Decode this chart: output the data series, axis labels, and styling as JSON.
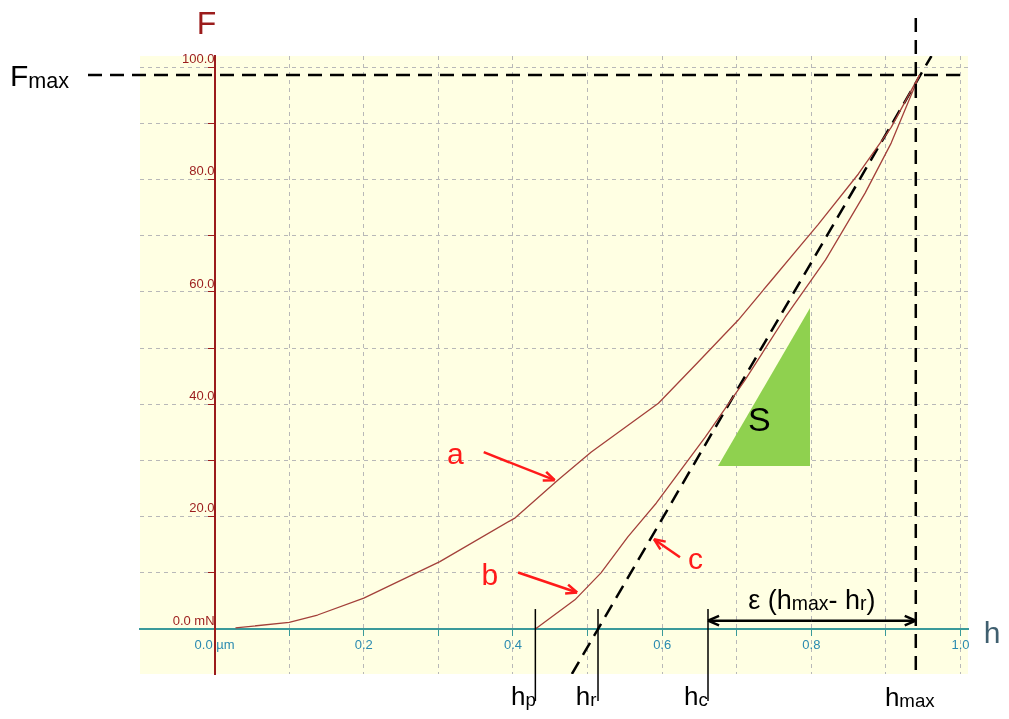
{
  "chart_data": {
    "type": "line",
    "xlabel": "h",
    "ylabel": "F",
    "xlim": [
      -0.1,
      1.01
    ],
    "ylim": [
      -8,
      102
    ],
    "xticks": [
      {
        "value": 0,
        "label": "0.0 µm"
      },
      {
        "value": 0.1,
        "label": null
      },
      {
        "value": 0.2,
        "label": "0.2"
      },
      {
        "value": 0.3,
        "label": null
      },
      {
        "value": 0.4,
        "label": "0.4"
      },
      {
        "value": 0.5,
        "label": null
      },
      {
        "value": 0.6,
        "label": "0.6"
      },
      {
        "value": 0.7,
        "label": null
      },
      {
        "value": 0.8,
        "label": "0.8"
      },
      {
        "value": 0.9,
        "label": null
      },
      {
        "value": 1.0,
        "label": "1.0"
      }
    ],
    "yticks": [
      {
        "value": 0,
        "label": "0.0 mN"
      },
      {
        "value": 10,
        "label": null
      },
      {
        "value": 20,
        "label": "20.0"
      },
      {
        "value": 30,
        "label": null
      },
      {
        "value": 40,
        "label": "40.0"
      },
      {
        "value": 50,
        "label": null
      },
      {
        "value": 60,
        "label": "60.0"
      },
      {
        "value": 70,
        "label": null
      },
      {
        "value": 80,
        "label": "80.0"
      },
      {
        "value": 90,
        "label": null
      },
      {
        "value": 100,
        "label": "100.0"
      }
    ],
    "grid": true,
    "legend": false,
    "marker": "none",
    "series": [
      {
        "color": "#a3403a",
        "line_style": "solid",
        "x": [
          0.028,
          0.1,
          0.138,
          0.2,
          0.302,
          0.403,
          0.46,
          0.505,
          0.595,
          0.648,
          0.702,
          0.746,
          0.809,
          0.863,
          0.907,
          0.945
        ],
        "values": [
          0.2,
          1.2,
          2.5,
          5.5,
          12,
          19.8,
          26.5,
          31.5,
          40.2,
          47.5,
          55,
          62,
          72,
          81,
          89.3,
          98.6
        ]
      },
      {
        "color": "#a3403a",
        "line_style": "solid",
        "x": [
          0.43,
          0.483,
          0.518,
          0.554,
          0.592,
          0.658,
          0.711,
          0.765,
          0.819,
          0.872,
          0.907,
          0.945
        ],
        "values": [
          0,
          5.2,
          10,
          16.4,
          22.4,
          34.2,
          44.3,
          55.5,
          65.7,
          77.6,
          86.5,
          98.6
        ]
      },
      {
        "color": "#000000",
        "line_style": "dashed",
        "x": [
          0.479,
          0.514,
          0.961
        ],
        "values": [
          -8,
          0,
          102
        ]
      }
    ],
    "ref_lines": [
      {
        "axis": "y",
        "value": 98.6,
        "label": "F$_{max}$",
        "color": "#000000",
        "line_style": "dashed"
      },
      {
        "axis": "x",
        "value": 0.94,
        "label": "h$_{max}$",
        "color": "#000000",
        "line_style": "dashed"
      }
    ],
    "annotations": [
      {
        "text": "a",
        "x": 0.46,
        "y": 26.5
      },
      {
        "text": "b",
        "x": 0.49,
        "y": 6.5
      },
      {
        "text": "c",
        "x": 0.585,
        "y": 16
      },
      {
        "text": "h$_{p}$",
        "x": 0.43,
        "y": 0
      },
      {
        "text": "h$_{r}$",
        "x": 0.514,
        "y": 0
      },
      "h$_{c}$",
      {
        "text": "ε (h$_{max}$- h$_{r}$)",
        "x": 0.94,
        "y": 1.5
      },
      "S"
    ]
  }
}
